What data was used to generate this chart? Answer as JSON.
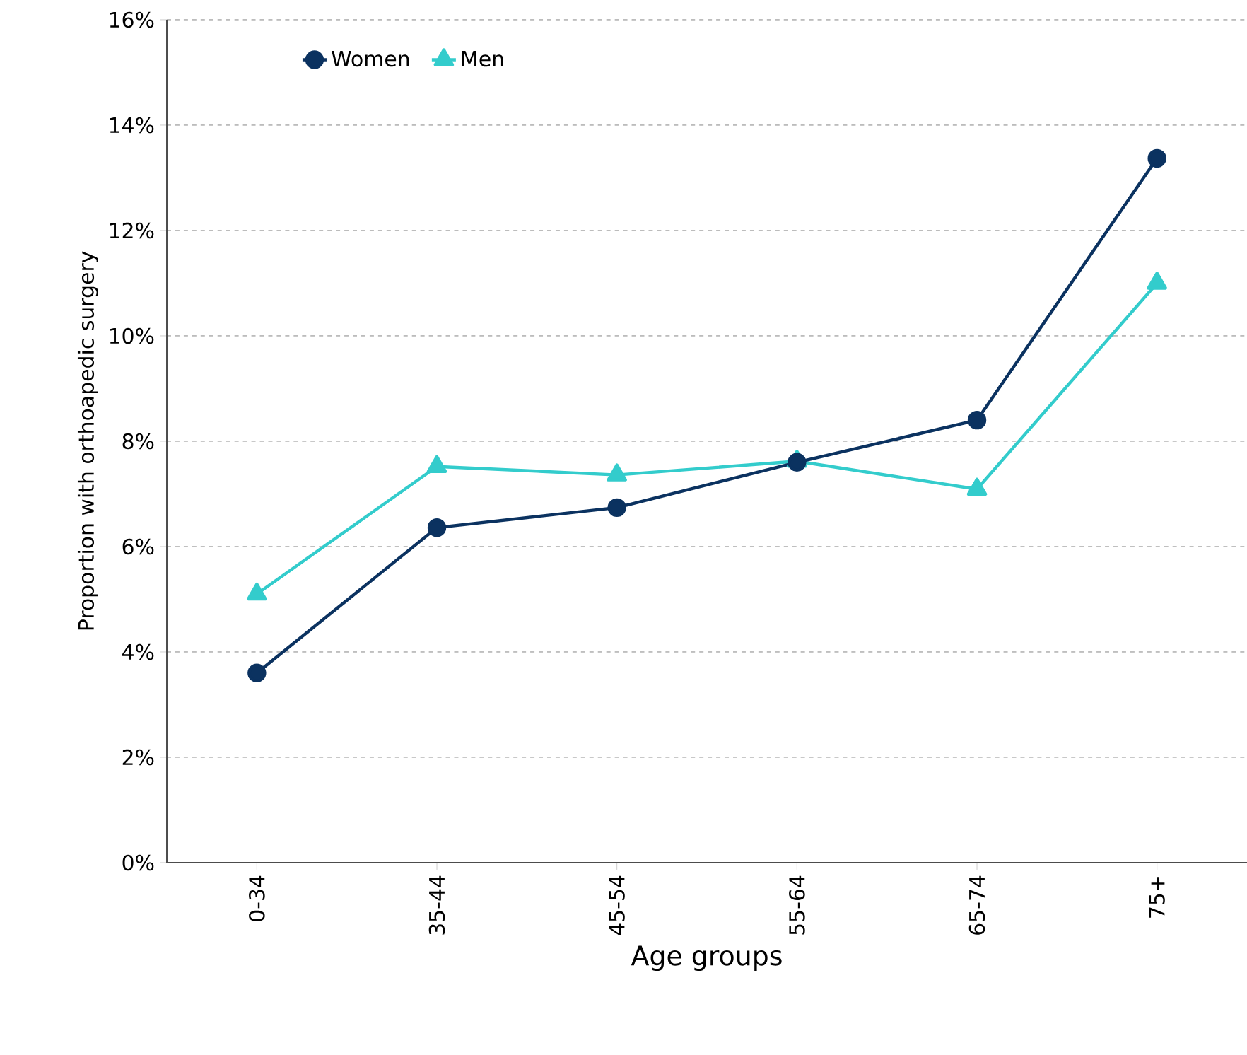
{
  "chart_data": {
    "type": "line",
    "xlabel": "Age groups",
    "ylabel": "Proportion with orthoapedic surgery",
    "categories": [
      "0-34",
      "35-44",
      "45-54",
      "55-64",
      "65-74",
      "75+"
    ],
    "series": [
      {
        "name": "Women",
        "color": "#0b3260",
        "marker": "circle",
        "values": [
          3.6,
          6.36,
          6.74,
          7.6,
          8.4,
          13.37
        ]
      },
      {
        "name": "Men",
        "color": "#33cccc",
        "marker": "triangle",
        "values": [
          5.1,
          7.52,
          7.36,
          7.62,
          7.09,
          11.0
        ]
      }
    ],
    "ylim": [
      0,
      16
    ],
    "yticks": [
      {
        "value": 0,
        "label": "0%"
      },
      {
        "value": 2,
        "label": "2%"
      },
      {
        "value": 4,
        "label": "4%"
      },
      {
        "value": 6,
        "label": "6%"
      },
      {
        "value": 8,
        "label": "8%"
      },
      {
        "value": 10,
        "label": "10%"
      },
      {
        "value": 12,
        "label": "12%"
      },
      {
        "value": 14,
        "label": "14%"
      },
      {
        "value": 16,
        "label": "16%"
      }
    ],
    "grid": "y",
    "legend": "top left",
    "line_style": "solid"
  }
}
